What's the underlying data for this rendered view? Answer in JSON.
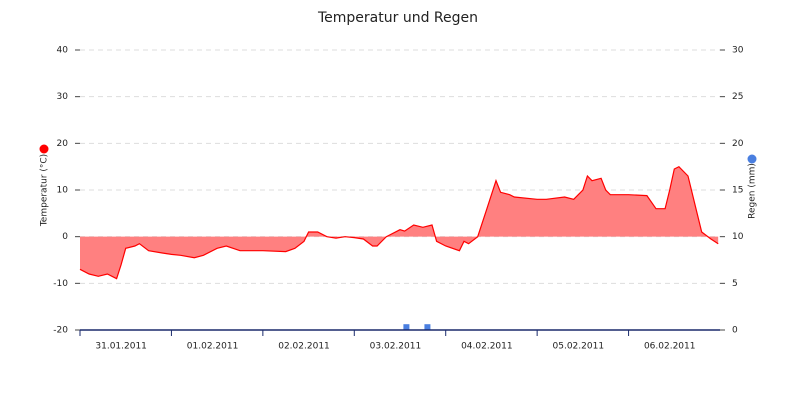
{
  "chart_data": {
    "type": "line",
    "title": "Temperatur und Regen",
    "xlim": [
      0,
      7
    ],
    "xticks": [
      {
        "value": 0.45,
        "label": "31.01.2011"
      },
      {
        "value": 1.45,
        "label": "01.02.2011"
      },
      {
        "value": 2.45,
        "label": "02.02.2011"
      },
      {
        "value": 3.45,
        "label": "03.02.2011"
      },
      {
        "value": 4.45,
        "label": "04.02.2011"
      },
      {
        "value": 5.45,
        "label": "05.02.2011"
      },
      {
        "value": 6.45,
        "label": "06.02.2011"
      }
    ],
    "ylim": [
      -20,
      40
    ],
    "yticks": [
      -20,
      -10,
      0,
      10,
      20,
      30,
      40
    ],
    "y2lim": [
      0,
      30
    ],
    "y2ticks": [
      0,
      5,
      10,
      15,
      20,
      25,
      30
    ],
    "grid": true,
    "series": [
      {
        "name": "Temperatur (°C)",
        "color": "#ff0000",
        "fill": "#ff8080",
        "x": [
          0,
          0.1,
          0.2,
          0.3,
          0.35,
          0.4,
          0.45,
          0.5,
          0.6,
          0.65,
          0.75,
          0.9,
          1.0,
          1.1,
          1.25,
          1.35,
          1.5,
          1.6,
          1.75,
          2.0,
          2.25,
          2.35,
          2.45,
          2.5,
          2.6,
          2.7,
          2.8,
          2.9,
          3.0,
          3.1,
          3.2,
          3.25,
          3.35,
          3.5,
          3.55,
          3.65,
          3.75,
          3.85,
          3.9,
          4.0,
          4.15,
          4.2,
          4.25,
          4.35,
          4.45,
          4.55,
          4.6,
          4.7,
          4.75,
          5.0,
          5.1,
          5.3,
          5.4,
          5.5,
          5.55,
          5.6,
          5.7,
          5.75,
          5.8,
          6.0,
          6.2,
          6.3,
          6.4,
          6.45,
          6.5,
          6.55,
          6.65,
          6.75,
          6.8,
          6.9,
          6.98
        ],
        "values": [
          -7,
          -8,
          -8.5,
          -8,
          -8.5,
          -9,
          -6,
          -2.5,
          -2,
          -1.5,
          -3,
          -3.5,
          -3.8,
          -4,
          -4.5,
          -4,
          -2.5,
          -2,
          -3,
          -3,
          -3.2,
          -2.5,
          -1,
          1,
          1,
          0,
          -0.3,
          0,
          -0.2,
          -0.5,
          -2,
          -2,
          0,
          1.5,
          1.2,
          2.5,
          2,
          2.5,
          -1,
          -2,
          -3,
          -1,
          -1.5,
          0,
          6,
          12,
          9.5,
          9,
          8.5,
          8,
          8,
          8.5,
          8,
          10,
          13,
          12,
          12.5,
          10,
          9,
          9,
          8.8,
          6,
          6,
          10,
          14.5,
          15,
          13,
          5,
          1,
          -0.5,
          -1.5
        ]
      },
      {
        "name": "Regen (mm)",
        "color": "#4a7fe0",
        "axis": "y2",
        "kind": "points",
        "x": [
          3.57,
          3.8
        ],
        "values": [
          0.3,
          0.3
        ]
      }
    ]
  }
}
